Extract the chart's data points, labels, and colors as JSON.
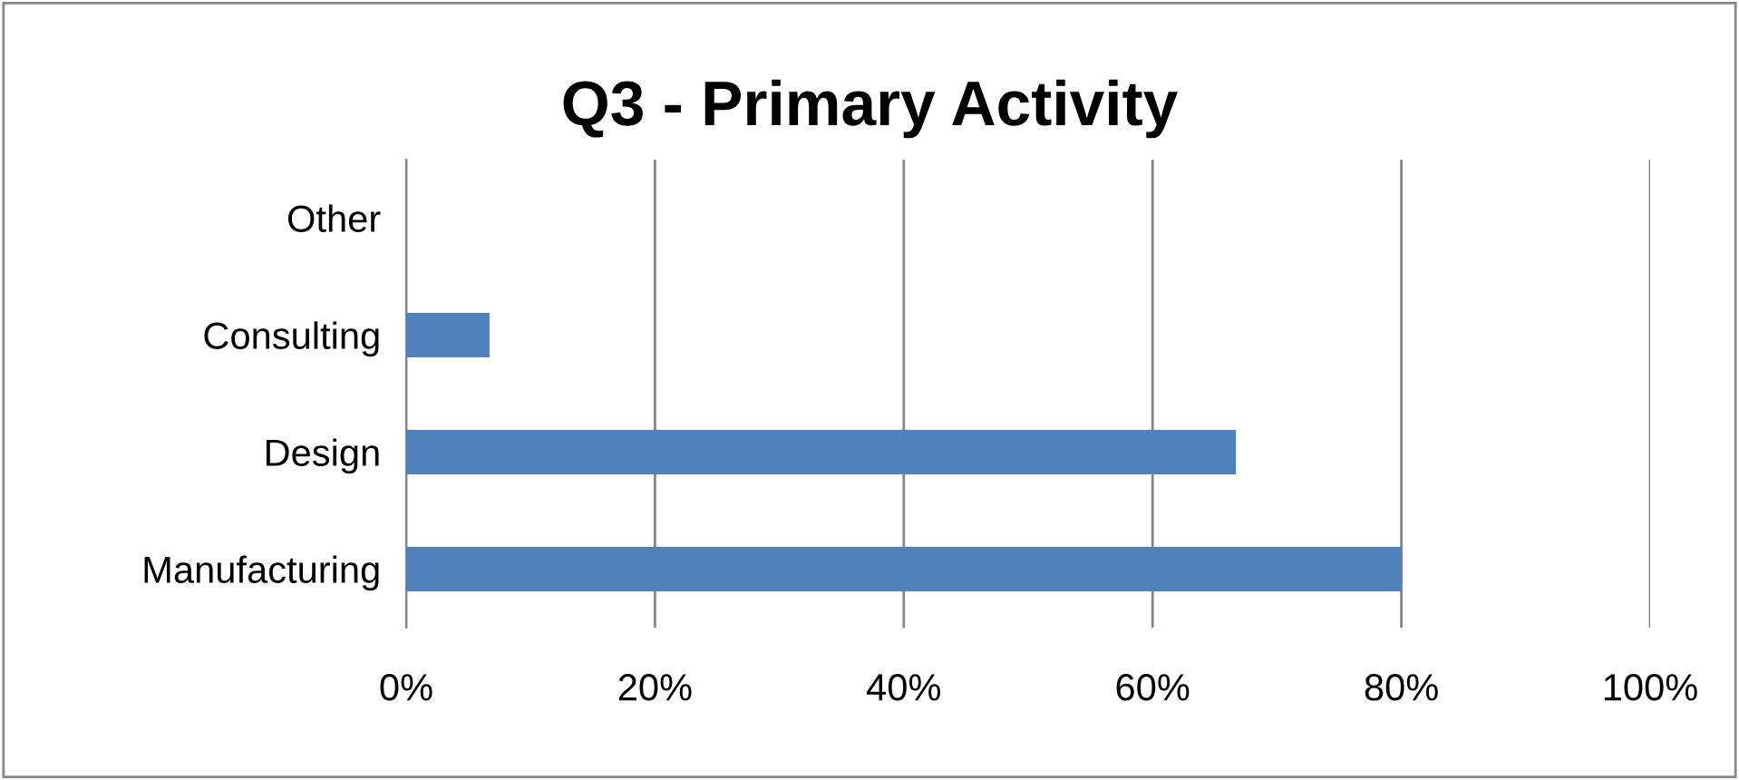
{
  "chart_data": {
    "type": "bar",
    "orientation": "horizontal",
    "title": "Q3 - Primary Activity",
    "categories": [
      "Other",
      "Consulting",
      "Design",
      "Manufacturing"
    ],
    "values": [
      0,
      6.7,
      66.7,
      80
    ],
    "color": "#4f81bd",
    "xlim": [
      0,
      100
    ],
    "xticks": [
      {
        "value": 0,
        "label": "0%"
      },
      {
        "value": 20,
        "label": "20%"
      },
      {
        "value": 40,
        "label": "40%"
      },
      {
        "value": 60,
        "label": "60%"
      },
      {
        "value": 80,
        "label": "80%"
      },
      {
        "value": 100,
        "label": "100%"
      }
    ],
    "grid": "x"
  }
}
